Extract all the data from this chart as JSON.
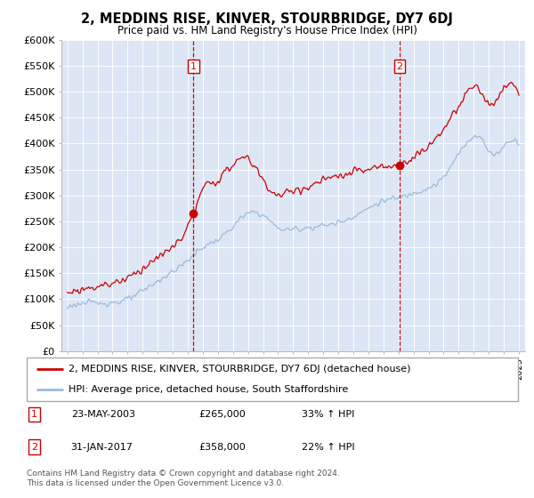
{
  "title": "2, MEDDINS RISE, KINVER, STOURBRIDGE, DY7 6DJ",
  "subtitle": "Price paid vs. HM Land Registry's House Price Index (HPI)",
  "legend_line1": "2, MEDDINS RISE, KINVER, STOURBRIDGE, DY7 6DJ (detached house)",
  "legend_line2": "HPI: Average price, detached house, South Staffordshire",
  "annotation1_label": "1",
  "annotation1_date": "23-MAY-2003",
  "annotation1_price": "£265,000",
  "annotation1_hpi": "33% ↑ HPI",
  "annotation1_year": 2003.38,
  "annotation1_value": 265000,
  "annotation2_label": "2",
  "annotation2_date": "31-JAN-2017",
  "annotation2_price": "£358,000",
  "annotation2_hpi": "22% ↑ HPI",
  "annotation2_year": 2017.08,
  "annotation2_value": 358000,
  "sale_color": "#cc0000",
  "hpi_color": "#99bbdd",
  "plot_bg_color": "#dce6f5",
  "ylim": [
    0,
    600000
  ],
  "yticks": [
    0,
    50000,
    100000,
    150000,
    200000,
    250000,
    300000,
    350000,
    400000,
    450000,
    500000,
    550000,
    600000
  ],
  "xlim_left": 1994.6,
  "xlim_right": 2025.4,
  "footer1": "Contains HM Land Registry data © Crown copyright and database right 2024.",
  "footer2": "This data is licensed under the Open Government Licence v3.0."
}
